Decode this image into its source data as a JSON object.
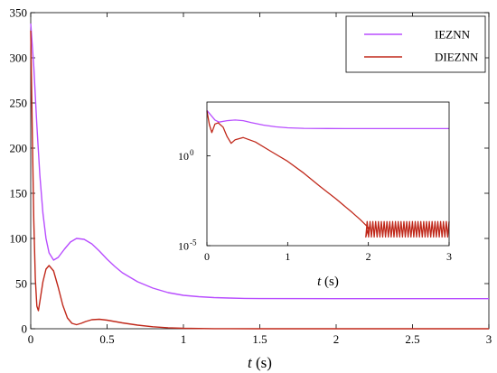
{
  "chart_data": [
    {
      "type": "line",
      "xlabel": "t (s)",
      "xlim": [
        0,
        3
      ],
      "ylim": [
        0,
        350
      ],
      "xticks": [
        0,
        0.5,
        1,
        1.5,
        2,
        2.5,
        3
      ],
      "xtick_labels": [
        "0",
        "0.5",
        "1",
        "1.5",
        "2",
        "2.5",
        "3"
      ],
      "yticks": [
        0,
        50,
        100,
        150,
        200,
        250,
        300,
        350
      ],
      "ytick_labels": [
        "0",
        "50",
        "100",
        "150",
        "200",
        "250",
        "300",
        "350"
      ],
      "legend": {
        "placement": "top-right",
        "entries": [
          "IEZNN",
          "DIEZNN"
        ]
      },
      "series": [
        {
          "name": "IEZNN",
          "color": "#b84dff",
          "x": [
            0,
            0.02,
            0.04,
            0.06,
            0.08,
            0.1,
            0.12,
            0.15,
            0.18,
            0.22,
            0.26,
            0.3,
            0.35,
            0.4,
            0.45,
            0.5,
            0.55,
            0.6,
            0.7,
            0.8,
            0.9,
            1.0,
            1.1,
            1.2,
            1.3,
            1.4,
            1.5,
            2.0,
            2.5,
            3.0
          ],
          "y": [
            338,
            290,
            225,
            170,
            128,
            100,
            84,
            76,
            79,
            88,
            96,
            100,
            99,
            94,
            86,
            77,
            69,
            62,
            52,
            45,
            40,
            37,
            35.5,
            34.5,
            34,
            33.6,
            33.4,
            33.3,
            33.3,
            33.3
          ]
        },
        {
          "name": "DIEZNN",
          "color": "#c0281a",
          "x": [
            0,
            0.01,
            0.02,
            0.03,
            0.04,
            0.05,
            0.06,
            0.08,
            0.1,
            0.12,
            0.15,
            0.18,
            0.21,
            0.24,
            0.27,
            0.3,
            0.33,
            0.36,
            0.4,
            0.45,
            0.5,
            0.55,
            0.6,
            0.7,
            0.8,
            0.9,
            1.0,
            1.2,
            1.5,
            2.0,
            3.0
          ],
          "y": [
            330,
            220,
            120,
            55,
            25,
            20,
            30,
            52,
            66,
            70,
            64,
            46,
            26,
            12,
            6,
            4.5,
            6,
            8,
            10,
            10.5,
            9.5,
            8,
            6.5,
            4,
            2.2,
            1.1,
            0.5,
            0.1,
            0.02,
            0,
            0
          ]
        }
      ]
    },
    {
      "type": "line",
      "role": "inset",
      "xlabel": "t (s)",
      "yscale": "log",
      "xlim": [
        0,
        3
      ],
      "ylim": [
        1e-05,
        1000
      ],
      "xticks": [
        0,
        1,
        2,
        3
      ],
      "xtick_labels": [
        "0",
        "1",
        "2",
        "3"
      ],
      "yticks": [
        1,
        1e-05
      ],
      "ytick_labels": [
        {
          "base": "10",
          "exp": "0"
        },
        {
          "base": "10",
          "exp": "-5"
        }
      ],
      "series": [
        {
          "name": "IEZNN",
          "color": "#b84dff",
          "x": [
            0,
            0.1,
            0.15,
            0.25,
            0.35,
            0.45,
            0.55,
            0.7,
            0.85,
            1.0,
            1.2,
            1.5,
            2.0,
            2.5,
            3.0
          ],
          "y": [
            340,
            100,
            76,
            92,
            100,
            92,
            72,
            52,
            42,
            37,
            34.5,
            33.5,
            33.3,
            33.3,
            33.3
          ]
        },
        {
          "name": "DIEZNN",
          "color": "#c0281a",
          "x": [
            0,
            0.03,
            0.06,
            0.1,
            0.14,
            0.2,
            0.25,
            0.3,
            0.35,
            0.45,
            0.6,
            0.8,
            1.0,
            1.2,
            1.4,
            1.6,
            1.8,
            1.9,
            2.0
          ],
          "y": [
            330,
            55,
            20,
            60,
            70,
            40,
            12,
            5,
            8,
            10.5,
            6,
            1.7,
            0.5,
            0.11,
            0.02,
            0.004,
            0.0007,
            0.00028,
            0.0001
          ],
          "oscillation": {
            "x_start": 1.95,
            "x_end": 3.0,
            "center": 8e-05,
            "low": 3e-05,
            "high": 0.00022
          }
        }
      ]
    }
  ]
}
